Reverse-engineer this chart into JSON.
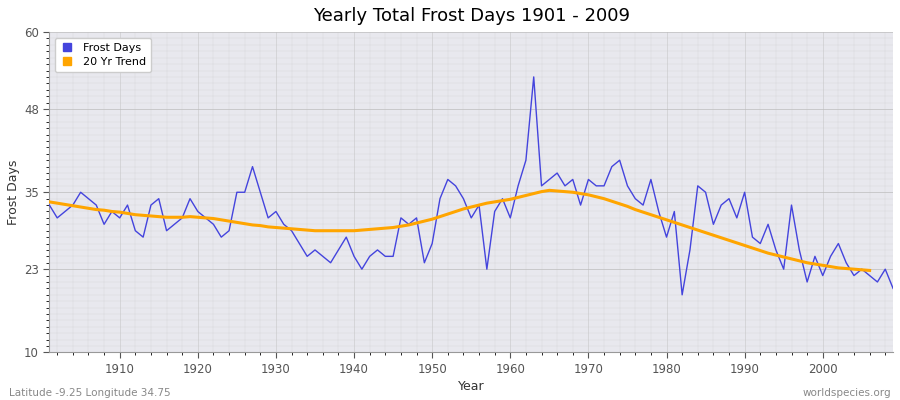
{
  "title": "Yearly Total Frost Days 1901 - 2009",
  "xlabel": "Year",
  "ylabel": "Frost Days",
  "subtitle": "Latitude -9.25 Longitude 34.75",
  "watermark": "worldspecies.org",
  "ylim": [
    10,
    60
  ],
  "yticks": [
    10,
    23,
    35,
    48,
    60
  ],
  "xlim": [
    1901,
    2009
  ],
  "xticks": [
    1910,
    1920,
    1930,
    1940,
    1950,
    1960,
    1970,
    1980,
    1990,
    2000
  ],
  "frost_color": "#4444dd",
  "trend_color": "#FFA500",
  "bg_color": "#e8e8ee",
  "fig_color": "#ffffff",
  "legend_frost": "Frost Days",
  "legend_trend": "20 Yr Trend",
  "years": [
    1901,
    1902,
    1903,
    1904,
    1905,
    1906,
    1907,
    1908,
    1909,
    1910,
    1911,
    1912,
    1913,
    1914,
    1915,
    1916,
    1917,
    1918,
    1919,
    1920,
    1921,
    1922,
    1923,
    1924,
    1925,
    1926,
    1927,
    1928,
    1929,
    1930,
    1931,
    1932,
    1933,
    1934,
    1935,
    1936,
    1937,
    1938,
    1939,
    1940,
    1941,
    1942,
    1943,
    1944,
    1945,
    1946,
    1947,
    1948,
    1949,
    1950,
    1951,
    1952,
    1953,
    1954,
    1955,
    1956,
    1957,
    1958,
    1959,
    1960,
    1961,
    1962,
    1963,
    1964,
    1965,
    1966,
    1967,
    1968,
    1969,
    1970,
    1971,
    1972,
    1973,
    1974,
    1975,
    1976,
    1977,
    1978,
    1979,
    1980,
    1981,
    1982,
    1983,
    1984,
    1985,
    1986,
    1987,
    1988,
    1989,
    1990,
    1991,
    1992,
    1993,
    1994,
    1995,
    1996,
    1997,
    1998,
    1999,
    2000,
    2001,
    2002,
    2003,
    2004,
    2005,
    2006,
    2007,
    2008,
    2009
  ],
  "frost_values": [
    33,
    31,
    32,
    33,
    35,
    34,
    33,
    30,
    32,
    31,
    33,
    29,
    28,
    33,
    34,
    29,
    30,
    31,
    34,
    32,
    31,
    30,
    28,
    29,
    35,
    35,
    39,
    35,
    31,
    32,
    30,
    29,
    27,
    25,
    26,
    25,
    24,
    26,
    28,
    25,
    23,
    25,
    26,
    25,
    25,
    31,
    30,
    31,
    24,
    27,
    34,
    37,
    36,
    34,
    31,
    33,
    23,
    32,
    34,
    31,
    36,
    40,
    53,
    36,
    37,
    38,
    36,
    37,
    33,
    37,
    36,
    36,
    39,
    40,
    36,
    34,
    33,
    37,
    32,
    28,
    32,
    19,
    26,
    36,
    35,
    30,
    33,
    34,
    31,
    35,
    28,
    27,
    30,
    26,
    23,
    33,
    26,
    21,
    25,
    22,
    25,
    27,
    24,
    22,
    23,
    22,
    21,
    23,
    20
  ],
  "trend_values": [
    33.5,
    33.3,
    33.1,
    32.9,
    32.7,
    32.5,
    32.3,
    32.2,
    32.0,
    31.9,
    31.7,
    31.5,
    31.4,
    31.3,
    31.2,
    31.1,
    31.1,
    31.1,
    31.2,
    31.1,
    31.0,
    30.9,
    30.7,
    30.5,
    30.3,
    30.1,
    29.9,
    29.8,
    29.6,
    29.5,
    29.4,
    29.3,
    29.2,
    29.1,
    29.0,
    29.0,
    29.0,
    29.0,
    29.0,
    29.0,
    29.1,
    29.2,
    29.3,
    29.4,
    29.5,
    29.7,
    29.9,
    30.2,
    30.5,
    30.8,
    31.2,
    31.6,
    32.0,
    32.4,
    32.7,
    33.0,
    33.3,
    33.5,
    33.7,
    33.9,
    34.2,
    34.5,
    34.8,
    35.1,
    35.3,
    35.2,
    35.1,
    35.0,
    34.8,
    34.6,
    34.3,
    34.0,
    33.6,
    33.2,
    32.8,
    32.3,
    31.9,
    31.5,
    31.1,
    30.7,
    30.3,
    29.9,
    29.5,
    29.1,
    28.7,
    28.3,
    27.9,
    27.5,
    27.1,
    26.7,
    26.3,
    25.9,
    25.5,
    25.2,
    24.9,
    24.6,
    24.3,
    24.0,
    23.8,
    23.6,
    23.4,
    23.2,
    23.1,
    23.0,
    22.9,
    22.8,
    null,
    null,
    null
  ]
}
